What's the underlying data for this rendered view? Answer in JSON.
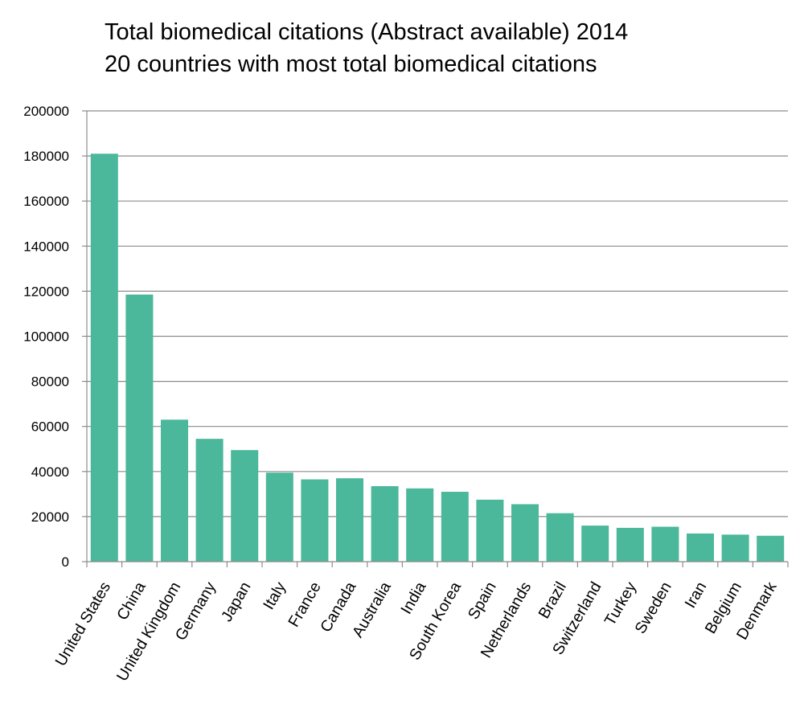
{
  "chart_data": {
    "type": "bar",
    "title": "Total biomedical citations (Abstract available) 2014",
    "subtitle": "20 countries with most total biomedical citations",
    "xlabel": "",
    "ylabel": "",
    "ylim": [
      0,
      200000
    ],
    "yticks": [
      "0",
      "20000",
      "40000",
      "60000",
      "80000",
      "100000",
      "120000",
      "140000",
      "160000",
      "180000",
      "200000"
    ],
    "grid": true,
    "categories": [
      "United States",
      "China",
      "United Kingdom",
      "Germany",
      "Japan",
      "Italy",
      "France",
      "Canada",
      "Australia",
      "India",
      "South Korea",
      "Spain",
      "Netherlands",
      "Brazil",
      "Switzerland",
      "Turkey",
      "Sweden",
      "Iran",
      "Belgium",
      "Denmark"
    ],
    "values": [
      181000,
      118500,
      63000,
      54500,
      49500,
      39500,
      36500,
      37000,
      33500,
      32500,
      31000,
      27500,
      25500,
      21500,
      16000,
      15000,
      15500,
      12500,
      12000,
      11500
    ],
    "bar_color": "#4bb79b"
  }
}
